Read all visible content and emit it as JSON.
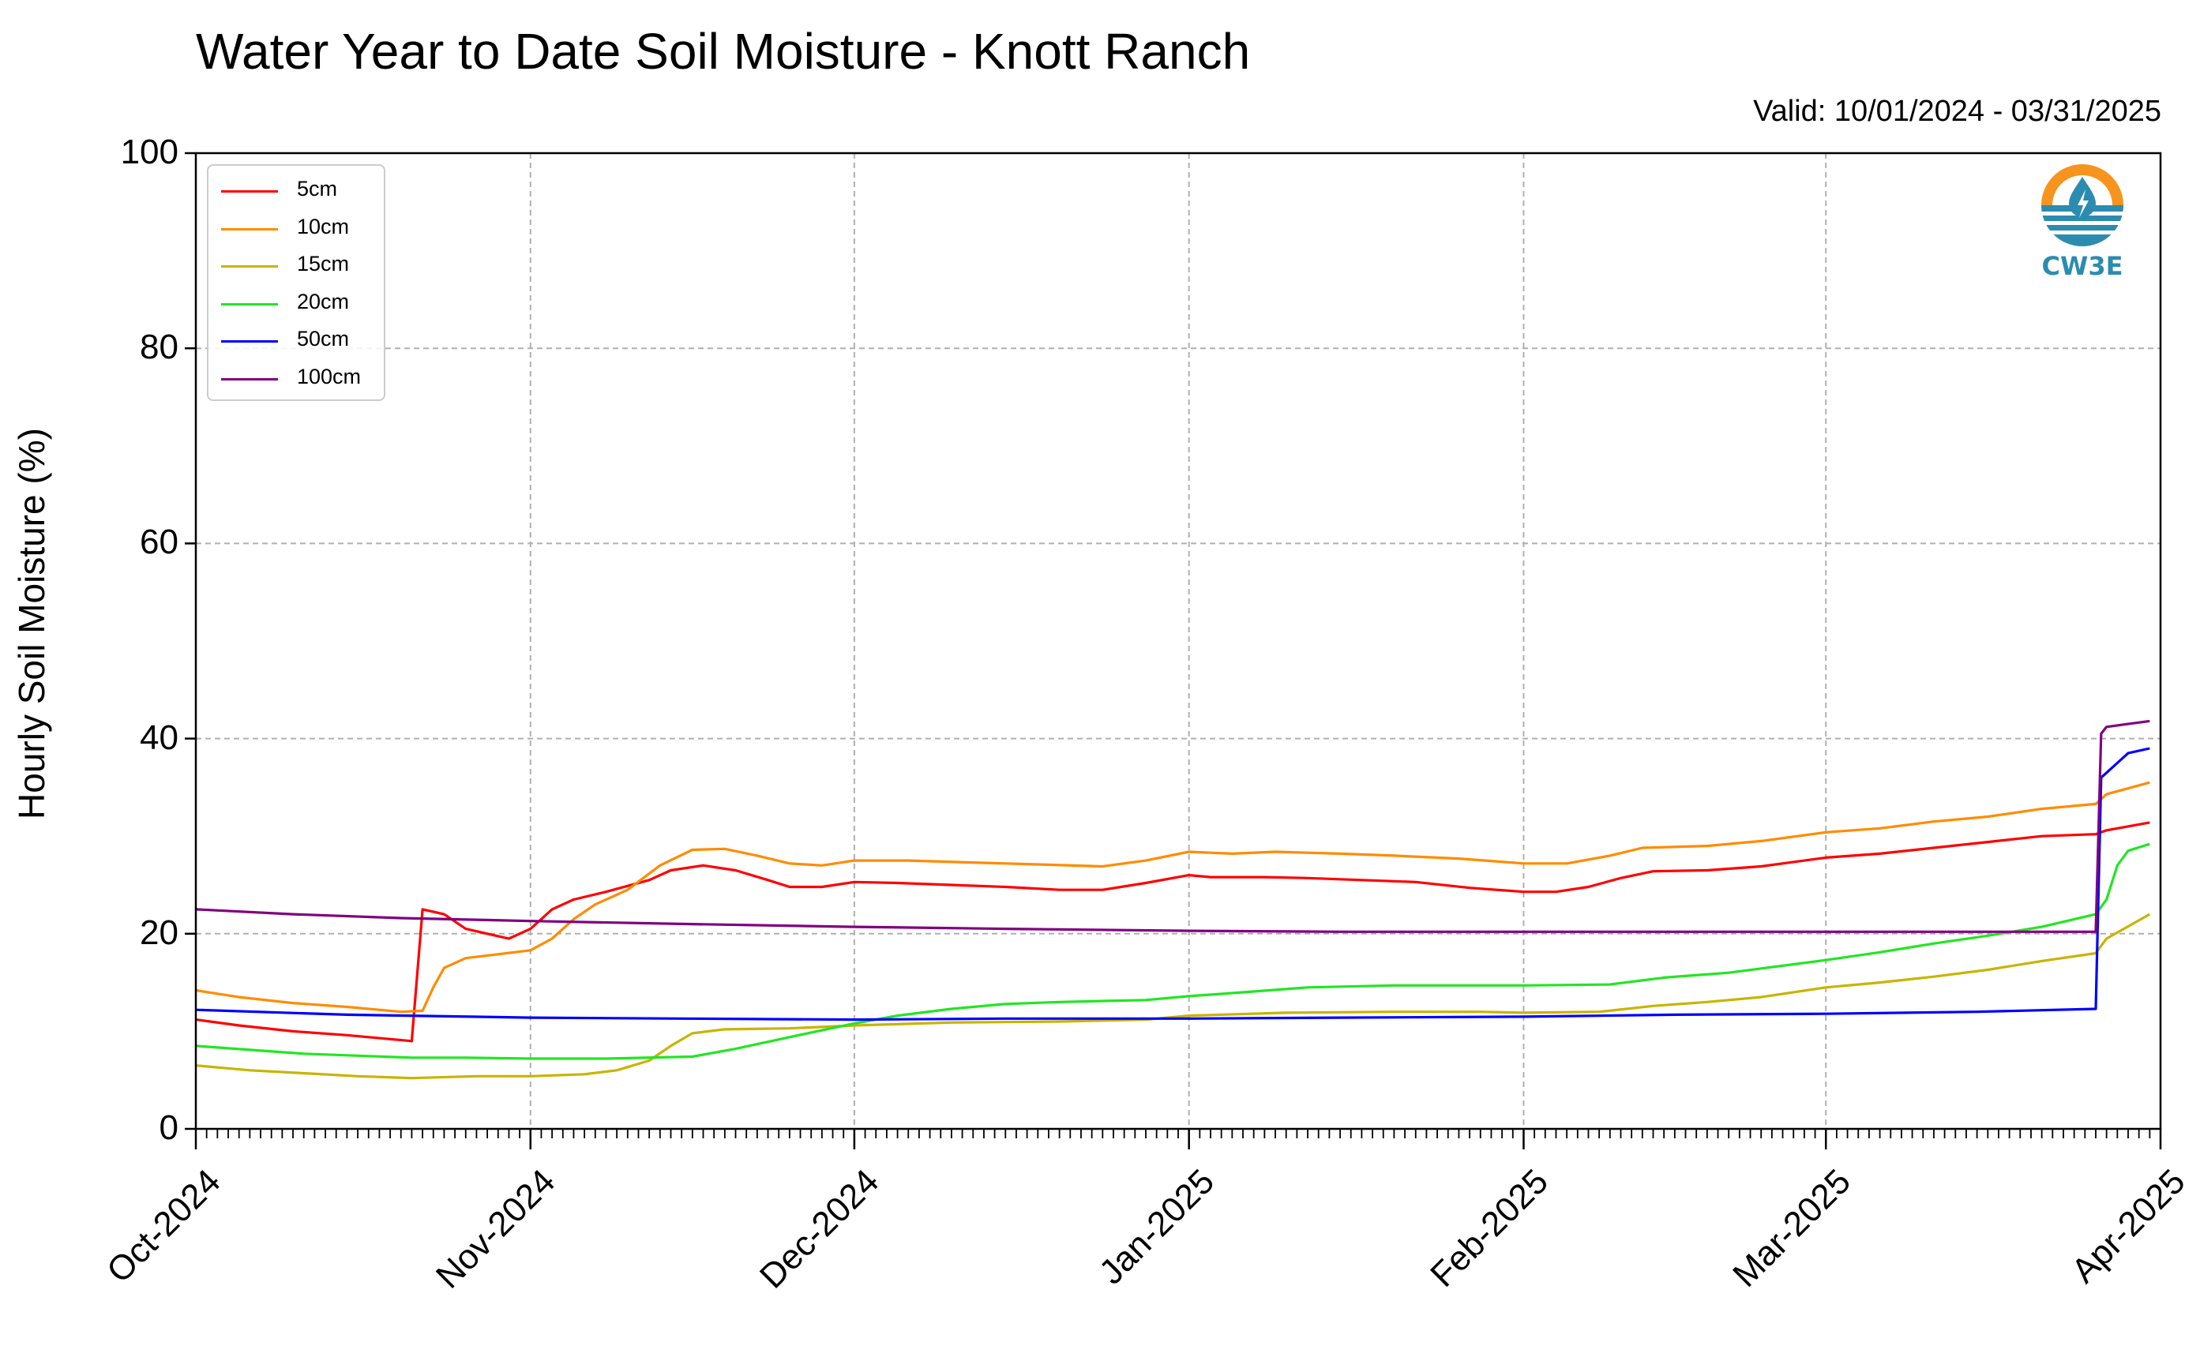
{
  "chart_data": {
    "type": "line",
    "title": "Water Year to Date Soil Moisture - Knott Ranch",
    "subtitle": "Valid: 10/01/2024 - 03/31/2025",
    "xlabel": "",
    "ylabel": "Hourly Soil Moisture (%)",
    "ylim": [
      0,
      100
    ],
    "xlim": [
      "2024-10-01",
      "2025-04-01"
    ],
    "yticks": [
      "0",
      "20",
      "40",
      "60",
      "80",
      "100"
    ],
    "xticks": [
      {
        "date": "2024-10-01",
        "label": "Oct-2024"
      },
      {
        "date": "2024-11-01",
        "label": "Nov-2024"
      },
      {
        "date": "2024-12-01",
        "label": "Dec-2024"
      },
      {
        "date": "2025-01-01",
        "label": "Jan-2025"
      },
      {
        "date": "2025-02-01",
        "label": "Feb-2025"
      },
      {
        "date": "2025-03-01",
        "label": "Mar-2025"
      },
      {
        "date": "2025-04-01",
        "label": "Apr-2025"
      }
    ],
    "grid": true,
    "legend_position": "top-left",
    "series": [
      {
        "name": "5cm",
        "color": "#ff0000",
        "points": [
          [
            "2024-10-01",
            11.2
          ],
          [
            "2024-10-05",
            10.6
          ],
          [
            "2024-10-10",
            10.0
          ],
          [
            "2024-10-15",
            9.6
          ],
          [
            "2024-10-19",
            9.2
          ],
          [
            "2024-10-21",
            9.0
          ],
          [
            "2024-10-22",
            22.5
          ],
          [
            "2024-10-24",
            22.0
          ],
          [
            "2024-10-26",
            20.5
          ],
          [
            "2024-10-28",
            20.0
          ],
          [
            "2024-10-30",
            19.5
          ],
          [
            "2024-11-01",
            20.5
          ],
          [
            "2024-11-02",
            21.5
          ],
          [
            "2024-11-03",
            22.5
          ],
          [
            "2024-11-05",
            23.5
          ],
          [
            "2024-11-08",
            24.3
          ],
          [
            "2024-11-12",
            25.5
          ],
          [
            "2024-11-14",
            26.5
          ],
          [
            "2024-11-17",
            27.0
          ],
          [
            "2024-11-20",
            26.5
          ],
          [
            "2024-11-23",
            25.5
          ],
          [
            "2024-11-25",
            24.8
          ],
          [
            "2024-11-28",
            24.8
          ],
          [
            "2024-12-01",
            25.3
          ],
          [
            "2024-12-05",
            25.2
          ],
          [
            "2024-12-10",
            25.0
          ],
          [
            "2024-12-15",
            24.8
          ],
          [
            "2024-12-20",
            24.5
          ],
          [
            "2024-12-24",
            24.5
          ],
          [
            "2024-12-28",
            25.2
          ],
          [
            "2025-01-01",
            26.0
          ],
          [
            "2025-01-03",
            25.8
          ],
          [
            "2025-01-08",
            25.8
          ],
          [
            "2025-01-12",
            25.7
          ],
          [
            "2025-01-17",
            25.5
          ],
          [
            "2025-01-22",
            25.3
          ],
          [
            "2025-01-27",
            24.7
          ],
          [
            "2025-02-01",
            24.3
          ],
          [
            "2025-02-04",
            24.3
          ],
          [
            "2025-02-07",
            24.8
          ],
          [
            "2025-02-10",
            25.7
          ],
          [
            "2025-02-13",
            26.4
          ],
          [
            "2025-02-18",
            26.5
          ],
          [
            "2025-02-23",
            26.9
          ],
          [
            "2025-03-01",
            27.8
          ],
          [
            "2025-03-06",
            28.2
          ],
          [
            "2025-03-11",
            28.8
          ],
          [
            "2025-03-16",
            29.4
          ],
          [
            "2025-03-21",
            30.0
          ],
          [
            "2025-03-26",
            30.2
          ],
          [
            "2025-03-27",
            30.6
          ],
          [
            "2025-03-31",
            31.4
          ]
        ]
      },
      {
        "name": "10cm",
        "color": "#ff8c00",
        "points": [
          [
            "2024-10-01",
            14.2
          ],
          [
            "2024-10-05",
            13.5
          ],
          [
            "2024-10-10",
            12.9
          ],
          [
            "2024-10-15",
            12.5
          ],
          [
            "2024-10-20",
            12.0
          ],
          [
            "2024-10-22",
            12.1
          ],
          [
            "2024-10-23",
            14.5
          ],
          [
            "2024-10-24",
            16.5
          ],
          [
            "2024-10-26",
            17.5
          ],
          [
            "2024-10-29",
            17.9
          ],
          [
            "2024-11-01",
            18.3
          ],
          [
            "2024-11-03",
            19.5
          ],
          [
            "2024-11-05",
            21.5
          ],
          [
            "2024-11-07",
            23.0
          ],
          [
            "2024-11-10",
            24.5
          ],
          [
            "2024-11-13",
            27.0
          ],
          [
            "2024-11-16",
            28.6
          ],
          [
            "2024-11-19",
            28.7
          ],
          [
            "2024-11-22",
            28.0
          ],
          [
            "2024-11-25",
            27.2
          ],
          [
            "2024-11-28",
            27.0
          ],
          [
            "2024-12-01",
            27.5
          ],
          [
            "2024-12-06",
            27.5
          ],
          [
            "2024-12-12",
            27.3
          ],
          [
            "2024-12-18",
            27.1
          ],
          [
            "2024-12-24",
            26.9
          ],
          [
            "2024-12-28",
            27.5
          ],
          [
            "2025-01-01",
            28.4
          ],
          [
            "2025-01-05",
            28.2
          ],
          [
            "2025-01-09",
            28.4
          ],
          [
            "2025-01-15",
            28.2
          ],
          [
            "2025-01-20",
            28.0
          ],
          [
            "2025-01-26",
            27.7
          ],
          [
            "2025-02-01",
            27.2
          ],
          [
            "2025-02-05",
            27.2
          ],
          [
            "2025-02-09",
            28.0
          ],
          [
            "2025-02-12",
            28.8
          ],
          [
            "2025-02-18",
            29.0
          ],
          [
            "2025-02-23",
            29.5
          ],
          [
            "2025-03-01",
            30.4
          ],
          [
            "2025-03-06",
            30.8
          ],
          [
            "2025-03-11",
            31.5
          ],
          [
            "2025-03-16",
            32.0
          ],
          [
            "2025-03-21",
            32.8
          ],
          [
            "2025-03-26",
            33.3
          ],
          [
            "2025-03-27",
            34.3
          ],
          [
            "2025-03-31",
            35.5
          ]
        ]
      },
      {
        "name": "15cm",
        "color": "#c8b400",
        "points": [
          [
            "2024-10-01",
            6.5
          ],
          [
            "2024-10-06",
            6.0
          ],
          [
            "2024-10-11",
            5.7
          ],
          [
            "2024-10-16",
            5.4
          ],
          [
            "2024-10-21",
            5.2
          ],
          [
            "2024-10-27",
            5.4
          ],
          [
            "2024-11-01",
            5.4
          ],
          [
            "2024-11-06",
            5.6
          ],
          [
            "2024-11-09",
            6.0
          ],
          [
            "2024-11-12",
            7.0
          ],
          [
            "2024-11-14",
            8.5
          ],
          [
            "2024-11-16",
            9.8
          ],
          [
            "2024-11-19",
            10.2
          ],
          [
            "2024-11-25",
            10.3
          ],
          [
            "2024-12-01",
            10.6
          ],
          [
            "2024-12-10",
            10.9
          ],
          [
            "2024-12-20",
            11.0
          ],
          [
            "2024-12-28",
            11.2
          ],
          [
            "2025-01-01",
            11.6
          ],
          [
            "2025-01-10",
            11.9
          ],
          [
            "2025-01-20",
            12.0
          ],
          [
            "2025-01-28",
            12.0
          ],
          [
            "2025-02-01",
            11.9
          ],
          [
            "2025-02-08",
            12.0
          ],
          [
            "2025-02-13",
            12.6
          ],
          [
            "2025-02-18",
            13.0
          ],
          [
            "2025-02-23",
            13.5
          ],
          [
            "2025-03-01",
            14.5
          ],
          [
            "2025-03-06",
            15.0
          ],
          [
            "2025-03-11",
            15.6
          ],
          [
            "2025-03-16",
            16.3
          ],
          [
            "2025-03-21",
            17.2
          ],
          [
            "2025-03-26",
            18.0
          ],
          [
            "2025-03-27",
            19.5
          ],
          [
            "2025-03-31",
            22.0
          ]
        ]
      },
      {
        "name": "20cm",
        "color": "#22e622",
        "points": [
          [
            "2024-10-01",
            8.5
          ],
          [
            "2024-10-06",
            8.1
          ],
          [
            "2024-10-11",
            7.7
          ],
          [
            "2024-10-16",
            7.5
          ],
          [
            "2024-10-21",
            7.3
          ],
          [
            "2024-10-26",
            7.3
          ],
          [
            "2024-11-01",
            7.2
          ],
          [
            "2024-11-08",
            7.2
          ],
          [
            "2024-11-16",
            7.4
          ],
          [
            "2024-11-20",
            8.2
          ],
          [
            "2024-11-25",
            9.4
          ],
          [
            "2024-12-01",
            10.8
          ],
          [
            "2024-12-05",
            11.6
          ],
          [
            "2024-12-10",
            12.3
          ],
          [
            "2024-12-15",
            12.8
          ],
          [
            "2024-12-20",
            13.0
          ],
          [
            "2024-12-28",
            13.2
          ],
          [
            "2025-01-01",
            13.6
          ],
          [
            "2025-01-06",
            14.0
          ],
          [
            "2025-01-12",
            14.5
          ],
          [
            "2025-01-20",
            14.7
          ],
          [
            "2025-01-28",
            14.7
          ],
          [
            "2025-02-01",
            14.7
          ],
          [
            "2025-02-09",
            14.8
          ],
          [
            "2025-02-14",
            15.5
          ],
          [
            "2025-02-20",
            16.0
          ],
          [
            "2025-03-01",
            17.3
          ],
          [
            "2025-03-06",
            18.1
          ],
          [
            "2025-03-11",
            19.0
          ],
          [
            "2025-03-16",
            19.8
          ],
          [
            "2025-03-21",
            20.7
          ],
          [
            "2025-03-26",
            22.0
          ],
          [
            "2025-03-27",
            23.5
          ],
          [
            "2025-03-28",
            27.0
          ],
          [
            "2025-03-29",
            28.5
          ],
          [
            "2025-03-31",
            29.2
          ]
        ]
      },
      {
        "name": "50cm",
        "color": "#0000ff",
        "points": [
          [
            "2024-10-01",
            12.2
          ],
          [
            "2024-10-15",
            11.7
          ],
          [
            "2024-11-01",
            11.4
          ],
          [
            "2024-11-15",
            11.3
          ],
          [
            "2024-12-01",
            11.2
          ],
          [
            "2024-12-15",
            11.3
          ],
          [
            "2025-01-01",
            11.3
          ],
          [
            "2025-01-15",
            11.4
          ],
          [
            "2025-02-01",
            11.5
          ],
          [
            "2025-02-15",
            11.7
          ],
          [
            "2025-03-01",
            11.8
          ],
          [
            "2025-03-15",
            12.0
          ],
          [
            "2025-03-26",
            12.3
          ],
          [
            "2025-03-26T12",
            36.0
          ],
          [
            "2025-03-27",
            36.5
          ],
          [
            "2025-03-28",
            37.5
          ],
          [
            "2025-03-29",
            38.5
          ],
          [
            "2025-03-31",
            39.0
          ]
        ]
      },
      {
        "name": "100cm",
        "color": "#800080",
        "points": [
          [
            "2024-10-01",
            22.5
          ],
          [
            "2024-10-10",
            22.0
          ],
          [
            "2024-10-20",
            21.6
          ],
          [
            "2024-11-01",
            21.3
          ],
          [
            "2024-11-15",
            21.0
          ],
          [
            "2024-12-01",
            20.7
          ],
          [
            "2024-12-15",
            20.5
          ],
          [
            "2025-01-01",
            20.3
          ],
          [
            "2025-01-15",
            20.2
          ],
          [
            "2025-02-01",
            20.2
          ],
          [
            "2025-03-01",
            20.2
          ],
          [
            "2025-03-26",
            20.2
          ],
          [
            "2025-03-26T12",
            40.5
          ],
          [
            "2025-03-27",
            41.2
          ],
          [
            "2025-03-29",
            41.5
          ],
          [
            "2025-03-31",
            41.8
          ]
        ]
      }
    ]
  },
  "logo": {
    "text": "CW3E",
    "color": "#2b8cb0",
    "accent": "#f7941d"
  }
}
